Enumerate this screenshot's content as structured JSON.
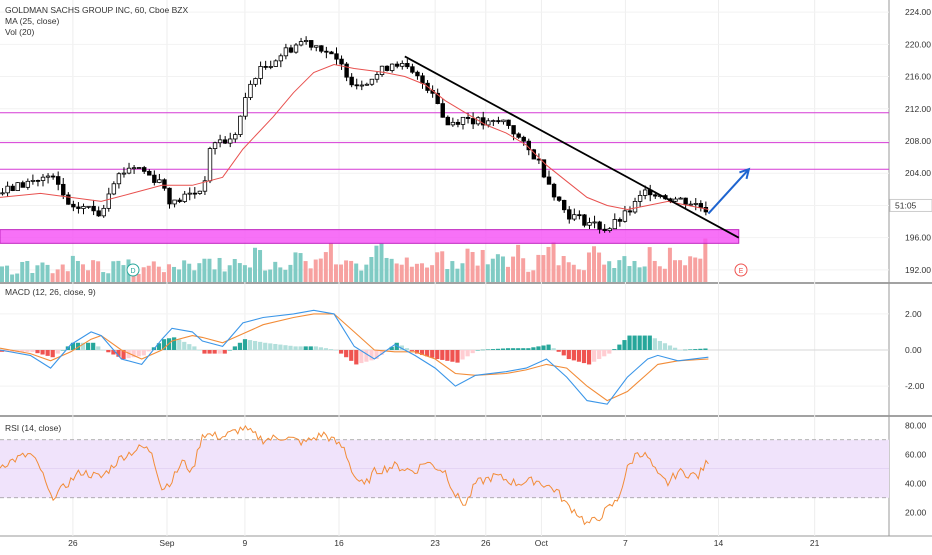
{
  "header": {
    "title": "GOLDMAN SACHS GROUP INC, 60, Cboe BZX",
    "ma_label": "MA (25, close)",
    "vol_label": "Vol (20)"
  },
  "price_axis": {
    "ticks": [
      "224.00",
      "220.00",
      "216.00",
      "212.00",
      "208.00",
      "204.00",
      "200.00",
      "196.00",
      "192.00"
    ],
    "countdown_label": "51:05"
  },
  "macd_panel": {
    "label": "MACD (12, 26, close, 9)",
    "ticks": [
      "2.00",
      "0.00",
      "-2.00"
    ]
  },
  "rsi_panel": {
    "label": "RSI (14, close)",
    "ticks": [
      "80.00",
      "60.00",
      "40.00",
      "20.00"
    ]
  },
  "time_axis": {
    "labels": [
      "26",
      "Sep",
      "9",
      "16",
      "23",
      "26",
      "Oct",
      "7",
      "14",
      "21"
    ]
  },
  "markers": {
    "dividend": "D",
    "earnings": "E"
  },
  "colors": {
    "up": "#26a69a",
    "down": "#ef5350",
    "vol_up": "#80cbc4",
    "vol_down": "#f7a1a0",
    "ma": "#e8514f",
    "level_line": "#d63ad6",
    "zone": "#f54df5",
    "trendline": "#000000",
    "arrow": "#1e64d0",
    "macd": "#3b96e8",
    "signal": "#f28c38",
    "rsi": "#f28c38",
    "rsi_band": "#f0e3fb"
  },
  "chart_data": [
    {
      "type": "candlestick",
      "title": "GOLDMAN SACHS GROUP INC, 60, Cboe BZX",
      "x_labels": [
        "26",
        "Sep",
        "9",
        "16",
        "23",
        "26",
        "Oct",
        "7",
        "14",
        "21"
      ],
      "ylim": [
        190.5,
        225.5
      ],
      "series": [
        {
          "name": "Price",
          "kind": "ohlc",
          "path_points": [
            [
              0,
              201.5
            ],
            [
              3,
              203
            ],
            [
              5,
              203.5
            ],
            [
              6,
              202
            ],
            [
              7,
              199
            ],
            [
              8,
              200
            ],
            [
              10,
              199
            ],
            [
              11,
              203
            ],
            [
              13,
              205
            ],
            [
              14,
              204.5
            ],
            [
              15,
              203.5
            ],
            [
              16,
              203
            ],
            [
              17,
              200
            ],
            [
              18,
              201
            ],
            [
              20,
              202
            ],
            [
              21,
              208
            ],
            [
              23,
              208
            ],
            [
              25,
              216
            ],
            [
              28,
              219
            ],
            [
              30,
              220.5
            ],
            [
              32,
              219.5
            ],
            [
              33,
              218
            ],
            [
              34,
              217
            ],
            [
              35,
              215
            ],
            [
              37,
              216
            ],
            [
              39,
              218
            ],
            [
              41,
              216
            ],
            [
              43,
              214
            ],
            [
              44,
              210
            ],
            [
              46,
              211
            ],
            [
              48,
              210
            ],
            [
              50,
              210.5
            ],
            [
              52,
              207
            ],
            [
              53,
              206
            ],
            [
              55,
              201
            ],
            [
              56,
              199
            ],
            [
              58,
              198
            ],
            [
              60,
              197
            ],
            [
              62,
              199
            ],
            [
              64,
              202
            ],
            [
              66,
              201
            ],
            [
              68,
              200.5
            ],
            [
              70,
              199.5
            ]
          ]
        },
        {
          "name": "MA (25, close)",
          "kind": "line",
          "path_points": [
            [
              0,
              201
            ],
            [
              4,
              201.5
            ],
            [
              7,
              201
            ],
            [
              10,
              200.5
            ],
            [
              13,
              201.5
            ],
            [
              16,
              202.5
            ],
            [
              19,
              202.5
            ],
            [
              22,
              203.5
            ],
            [
              24,
              207
            ],
            [
              27,
              211
            ],
            [
              29,
              214
            ],
            [
              31,
              216.5
            ],
            [
              33,
              217.5
            ],
            [
              35,
              217
            ],
            [
              38,
              216.5
            ],
            [
              40,
              216
            ],
            [
              42,
              215
            ],
            [
              44,
              213
            ],
            [
              46,
              211.5
            ],
            [
              48,
              210
            ],
            [
              50,
              209
            ],
            [
              52,
              207.5
            ],
            [
              54,
              205
            ],
            [
              56,
              203
            ],
            [
              58,
              201
            ],
            [
              60,
              200
            ],
            [
              62,
              199.5
            ],
            [
              64,
              200
            ],
            [
              66,
              200.5
            ],
            [
              68,
              200
            ],
            [
              70,
              199.5
            ]
          ]
        }
      ],
      "horizontal_levels": [
        211.5,
        207.8,
        204.5
      ],
      "support_zone": [
        195.3,
        197
      ],
      "trendline": {
        "from": [
          40,
          218.5
        ],
        "to": [
          73,
          196
        ]
      },
      "arrow": {
        "from": [
          70,
          199
        ],
        "to": [
          74,
          204.5
        ]
      }
    },
    {
      "type": "bar",
      "title": "Vol (20)",
      "note": "volume histogram, relative heights 0-1",
      "values": [
        0.3,
        0.2,
        0.4,
        0.25,
        0.35,
        0.2,
        0.3,
        0.5,
        0.3,
        0.4,
        0.25,
        0.3,
        0.45,
        0.2,
        0.3,
        0.35,
        0.25,
        0.3,
        0.4,
        0.3,
        0.5,
        0.35,
        0.25,
        0.45,
        0.3,
        0.55,
        0.3,
        0.4,
        0.35,
        0.5,
        0.3,
        0.45,
        0.6,
        0.35,
        0.5,
        0.3,
        0.4,
        0.55,
        0.35,
        0.3,
        0.45,
        0.4,
        0.35,
        0.5,
        0.3,
        0.4,
        0.6,
        0.45,
        0.35,
        0.5,
        0.4,
        0.55,
        0.3,
        0.45,
        0.6,
        0.4,
        0.5,
        0.35,
        0.55,
        0.45,
        0.4,
        0.5,
        0.45,
        0.35,
        0.55,
        0.4,
        0.6,
        0.45,
        0.5,
        0.7
      ]
    },
    {
      "type": "line",
      "title": "MACD (12, 26, close, 9)",
      "ylim": [
        -3.6,
        3.6
      ],
      "series": [
        {
          "name": "MACD",
          "path_points": [
            [
              0,
              0
            ],
            [
              3,
              -0.3
            ],
            [
              5,
              -1
            ],
            [
              7,
              0.3
            ],
            [
              9,
              1
            ],
            [
              10,
              0.8
            ],
            [
              12,
              -0.5
            ],
            [
              14,
              -0.8
            ],
            [
              16,
              0.6
            ],
            [
              17,
              1.2
            ],
            [
              19,
              1
            ],
            [
              20,
              0.5
            ],
            [
              22,
              0.2
            ],
            [
              24,
              1.5
            ],
            [
              26,
              1.8
            ],
            [
              29,
              2
            ],
            [
              31,
              2.2
            ],
            [
              33,
              2
            ],
            [
              35,
              0.2
            ],
            [
              37,
              -0.5
            ],
            [
              39,
              0.3
            ],
            [
              41,
              -0.3
            ],
            [
              43,
              -1
            ],
            [
              45,
              -2
            ],
            [
              47,
              -1.4
            ],
            [
              50,
              -1.2
            ],
            [
              52,
              -1
            ],
            [
              54,
              -0.5
            ],
            [
              56,
              -1.5
            ],
            [
              58,
              -2.8
            ],
            [
              60,
              -3
            ],
            [
              62,
              -1.5
            ],
            [
              64,
              -0.5
            ],
            [
              65,
              -0.3
            ],
            [
              67,
              -0.6
            ],
            [
              70,
              -0.4
            ]
          ]
        },
        {
          "name": "Signal",
          "path_points": [
            [
              0,
              0.1
            ],
            [
              3,
              -0.2
            ],
            [
              5,
              -0.6
            ],
            [
              7,
              -0.1
            ],
            [
              9,
              0.6
            ],
            [
              10,
              0.8
            ],
            [
              12,
              0
            ],
            [
              14,
              -0.5
            ],
            [
              16,
              0
            ],
            [
              17,
              0.5
            ],
            [
              19,
              0.8
            ],
            [
              20,
              0.7
            ],
            [
              22,
              0.4
            ],
            [
              24,
              0.9
            ],
            [
              26,
              1.4
            ],
            [
              29,
              1.8
            ],
            [
              31,
              2
            ],
            [
              33,
              2
            ],
            [
              35,
              1
            ],
            [
              37,
              0
            ],
            [
              39,
              -0.1
            ],
            [
              41,
              -0.1
            ],
            [
              43,
              -0.5
            ],
            [
              45,
              -1.3
            ],
            [
              47,
              -1.4
            ],
            [
              50,
              -1.3
            ],
            [
              52,
              -1.1
            ],
            [
              54,
              -0.8
            ],
            [
              56,
              -1
            ],
            [
              58,
              -2
            ],
            [
              60,
              -2.8
            ],
            [
              62,
              -2.3
            ],
            [
              64,
              -1.3
            ],
            [
              65,
              -0.8
            ],
            [
              67,
              -0.6
            ],
            [
              70,
              -0.5
            ]
          ]
        }
      ],
      "histogram_note": "MACD minus Signal"
    },
    {
      "type": "line",
      "title": "RSI (14, close)",
      "ylim": [
        5,
        85
      ],
      "band": [
        30,
        70
      ],
      "series": [
        {
          "name": "RSI",
          "path_points": [
            [
              0,
              52
            ],
            [
              2,
              58
            ],
            [
              3,
              60
            ],
            [
              4,
              50
            ],
            [
              5,
              30
            ],
            [
              6,
              35
            ],
            [
              7,
              42
            ],
            [
              8,
              48
            ],
            [
              10,
              44
            ],
            [
              12,
              58
            ],
            [
              14,
              65
            ],
            [
              15,
              62
            ],
            [
              16,
              36
            ],
            [
              17,
              42
            ],
            [
              18,
              55
            ],
            [
              19,
              48
            ],
            [
              20,
              74
            ],
            [
              22,
              72
            ],
            [
              24,
              78
            ],
            [
              26,
              70
            ],
            [
              28,
              72
            ],
            [
              30,
              68
            ],
            [
              32,
              74
            ],
            [
              34,
              64
            ],
            [
              35,
              45
            ],
            [
              36,
              38
            ],
            [
              37,
              48
            ],
            [
              39,
              52
            ],
            [
              41,
              48
            ],
            [
              42,
              55
            ],
            [
              44,
              48
            ],
            [
              45,
              32
            ],
            [
              46,
              25
            ],
            [
              47,
              40
            ],
            [
              49,
              45
            ],
            [
              51,
              40
            ],
            [
              53,
              42
            ],
            [
              55,
              35
            ],
            [
              56,
              25
            ],
            [
              57,
              20
            ],
            [
              58,
              12
            ],
            [
              59,
              15
            ],
            [
              60,
              22
            ],
            [
              61,
              28
            ],
            [
              62,
              50
            ],
            [
              63,
              62
            ],
            [
              64,
              58
            ],
            [
              65,
              45
            ],
            [
              66,
              40
            ],
            [
              67,
              48
            ],
            [
              69,
              45
            ],
            [
              70,
              56
            ]
          ]
        }
      ]
    }
  ]
}
